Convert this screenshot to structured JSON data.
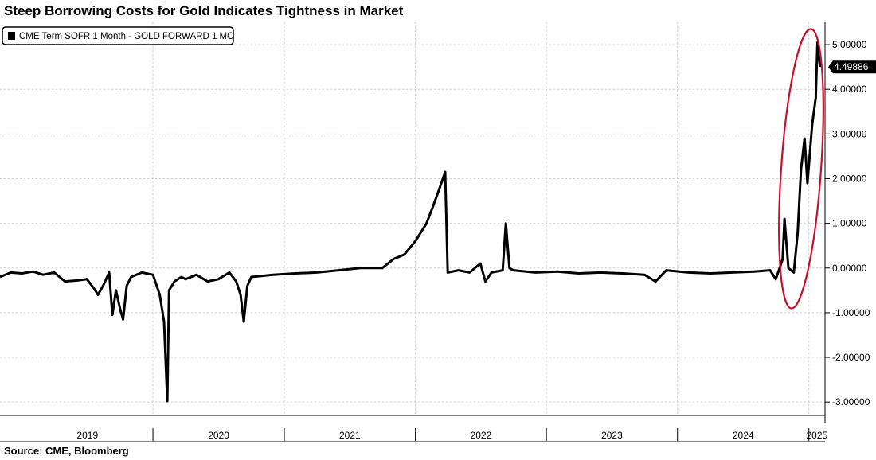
{
  "chart_data": {
    "type": "line",
    "title": "Steep Borrowing Costs for Gold Indicates Tightness in Market",
    "source": "Source: CME, Bloomberg",
    "legend": "CME Term SOFR 1 Month - GOLD FORWARD 1 MO",
    "legend_position": "top-left",
    "last_value_label": "4.49886",
    "ylim": [
      -3.3,
      5.5
    ],
    "yticks": [
      -3,
      -2,
      -1,
      0,
      1,
      2,
      3,
      4,
      5
    ],
    "ytick_labels": [
      "-3.00000",
      "-2.00000",
      "-1.00000",
      "0.00000",
      "1.00000",
      "2.00000",
      "3.00000",
      "4.00000",
      "5.00000"
    ],
    "x_year_labels": [
      "2019",
      "2020",
      "2021",
      "2022",
      "2023",
      "2024",
      "2025"
    ],
    "x_range": [
      "2018-11-01",
      "2025-02-15"
    ],
    "grid": true,
    "highlight": {
      "shape": "ellipse",
      "color": "#c8102e",
      "around": "late 2024 – 2025 spike"
    },
    "colors": {
      "line": "#000000",
      "grid": "#c8c8c8",
      "highlight": "#c8102e"
    },
    "series": [
      {
        "name": "CME Term SOFR 1 Month - GOLD FORWARD 1 MO",
        "points": [
          [
            "2018-11-01",
            -0.2
          ],
          [
            "2018-12-01",
            -0.1
          ],
          [
            "2019-01-01",
            -0.12
          ],
          [
            "2019-02-01",
            -0.08
          ],
          [
            "2019-03-01",
            -0.15
          ],
          [
            "2019-04-01",
            -0.1
          ],
          [
            "2019-05-01",
            -0.3
          ],
          [
            "2019-06-01",
            -0.28
          ],
          [
            "2019-07-01",
            -0.25
          ],
          [
            "2019-07-20",
            -0.45
          ],
          [
            "2019-08-01",
            -0.6
          ],
          [
            "2019-08-15",
            -0.4
          ],
          [
            "2019-09-01",
            -0.1
          ],
          [
            "2019-09-10",
            -1.05
          ],
          [
            "2019-09-20",
            -0.5
          ],
          [
            "2019-10-01",
            -0.9
          ],
          [
            "2019-10-10",
            -1.15
          ],
          [
            "2019-10-20",
            -0.4
          ],
          [
            "2019-11-01",
            -0.2
          ],
          [
            "2019-12-01",
            -0.1
          ],
          [
            "2020-01-01",
            -0.15
          ],
          [
            "2020-01-20",
            -0.6
          ],
          [
            "2020-02-01",
            -1.2
          ],
          [
            "2020-02-10",
            -2.98
          ],
          [
            "2020-02-15",
            -0.5
          ],
          [
            "2020-03-01",
            -0.3
          ],
          [
            "2020-03-20",
            -0.2
          ],
          [
            "2020-04-01",
            -0.25
          ],
          [
            "2020-05-01",
            -0.15
          ],
          [
            "2020-06-01",
            -0.3
          ],
          [
            "2020-07-01",
            -0.25
          ],
          [
            "2020-08-01",
            -0.1
          ],
          [
            "2020-08-20",
            -0.3
          ],
          [
            "2020-09-01",
            -0.6
          ],
          [
            "2020-09-10",
            -1.2
          ],
          [
            "2020-09-20",
            -0.4
          ],
          [
            "2020-10-01",
            -0.2
          ],
          [
            "2020-12-01",
            -0.15
          ],
          [
            "2021-02-01",
            -0.12
          ],
          [
            "2021-04-01",
            -0.1
          ],
          [
            "2021-06-01",
            -0.05
          ],
          [
            "2021-08-01",
            0.0
          ],
          [
            "2021-10-01",
            0.0
          ],
          [
            "2021-11-01",
            0.2
          ],
          [
            "2021-12-01",
            0.3
          ],
          [
            "2022-01-01",
            0.6
          ],
          [
            "2022-02-01",
            1.0
          ],
          [
            "2022-02-20",
            1.4
          ],
          [
            "2022-03-10",
            1.8
          ],
          [
            "2022-03-25",
            2.15
          ],
          [
            "2022-04-01",
            -0.1
          ],
          [
            "2022-05-01",
            -0.05
          ],
          [
            "2022-06-01",
            -0.1
          ],
          [
            "2022-07-01",
            0.1
          ],
          [
            "2022-07-15",
            -0.3
          ],
          [
            "2022-08-01",
            -0.1
          ],
          [
            "2022-09-01",
            -0.05
          ],
          [
            "2022-09-10",
            1.0
          ],
          [
            "2022-09-20",
            0.0
          ],
          [
            "2022-10-01",
            -0.05
          ],
          [
            "2022-12-01",
            -0.1
          ],
          [
            "2023-02-01",
            -0.08
          ],
          [
            "2023-04-01",
            -0.12
          ],
          [
            "2023-06-01",
            -0.1
          ],
          [
            "2023-08-01",
            -0.12
          ],
          [
            "2023-10-01",
            -0.15
          ],
          [
            "2023-11-01",
            -0.3
          ],
          [
            "2023-12-01",
            -0.05
          ],
          [
            "2024-02-01",
            -0.1
          ],
          [
            "2024-04-01",
            -0.12
          ],
          [
            "2024-06-01",
            -0.1
          ],
          [
            "2024-08-01",
            -0.08
          ],
          [
            "2024-09-15",
            -0.05
          ],
          [
            "2024-10-01",
            -0.25
          ],
          [
            "2024-10-20",
            0.2
          ],
          [
            "2024-10-25",
            1.1
          ],
          [
            "2024-11-05",
            0.0
          ],
          [
            "2024-11-20",
            -0.1
          ],
          [
            "2024-12-01",
            0.8
          ],
          [
            "2024-12-10",
            2.2
          ],
          [
            "2024-12-20",
            2.9
          ],
          [
            "2024-12-28",
            1.9
          ],
          [
            "2025-01-10",
            3.2
          ],
          [
            "2025-01-20",
            3.8
          ],
          [
            "2025-01-25",
            5.05
          ],
          [
            "2025-02-01",
            4.5
          ]
        ]
      }
    ]
  }
}
